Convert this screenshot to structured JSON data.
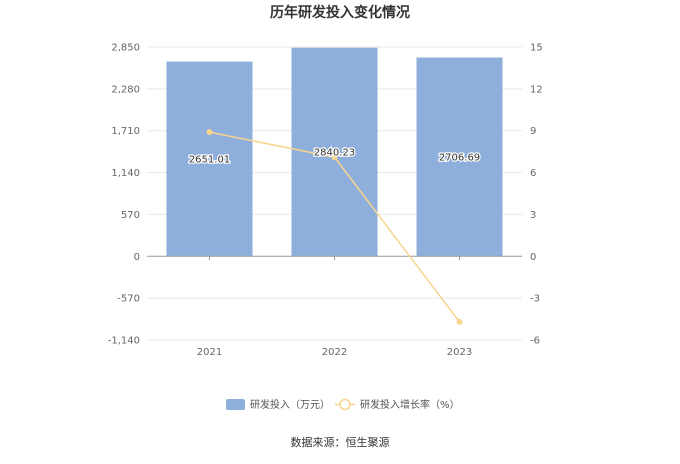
{
  "chart_data": {
    "type": "bar",
    "title": "历年研发投入变化情况",
    "categories": [
      "2021",
      "2022",
      "2023"
    ],
    "series": [
      {
        "name": "研发投入（万元）",
        "kind": "bar",
        "axis": "left",
        "color": "#8eaedb",
        "values": [
          2651.01,
          2840.23,
          2706.69
        ],
        "labels": [
          "2651.01",
          "2840.23",
          "2706.69"
        ]
      },
      {
        "name": "研发投入增长率（%）",
        "kind": "line",
        "axis": "right",
        "color": "#f8d58f",
        "values": [
          8.9,
          7.1,
          -4.7
        ]
      }
    ],
    "y_left": {
      "ylim": [
        -1140,
        2850
      ],
      "ticks": [
        "2,850",
        "2,280",
        "1,710",
        "1,140",
        "570",
        "0",
        "-570",
        "-1,140"
      ],
      "tick_values": [
        2850,
        2280,
        1710,
        1140,
        570,
        0,
        -570,
        -1140
      ]
    },
    "y_right": {
      "ylim": [
        -6,
        15
      ],
      "ticks": [
        "15",
        "12",
        "9",
        "6",
        "3",
        "0",
        "-3",
        "-6"
      ],
      "tick_values": [
        15,
        12,
        9,
        6,
        3,
        0,
        -3,
        -6
      ]
    },
    "grid": true,
    "legend_position": "bottom"
  },
  "source": "数据来源：恒生聚源"
}
